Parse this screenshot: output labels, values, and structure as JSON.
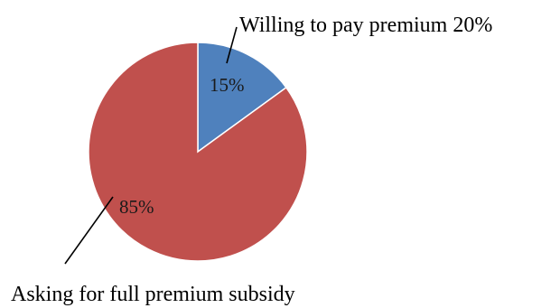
{
  "chart_data": {
    "type": "pie",
    "series": [
      {
        "name": "Willing to pay premium 20%",
        "value": 15,
        "label": "15%",
        "color": "#4f81bd"
      },
      {
        "name": "Asking for full premium subsidy",
        "value": 85,
        "label": "85%",
        "color": "#c0504d"
      }
    ],
    "start_angle": "12 o'clock",
    "direction": "clockwise"
  }
}
